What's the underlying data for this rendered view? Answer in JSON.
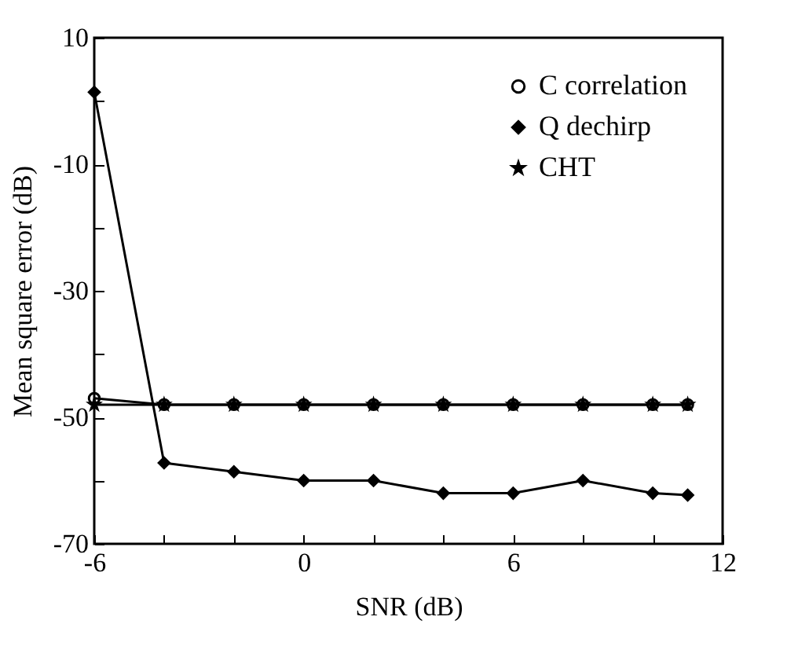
{
  "chart_data": {
    "type": "line",
    "xlabel": "SNR (dB)",
    "ylabel": "Mean square error (dB)",
    "x": [
      -6,
      -4,
      -2,
      0,
      2,
      4,
      6,
      8,
      10,
      11
    ],
    "series": [
      {
        "name": "C correlation",
        "color": "#000000",
        "marker": "circle",
        "values": [
          -47,
          -48,
          -48,
          -48,
          -48,
          -48,
          -48,
          -48,
          -48,
          -48
        ]
      },
      {
        "name": "Q dechirp",
        "color": "#000000",
        "marker": "diamond",
        "values": [
          1.4,
          -57.2,
          -58.6,
          -60,
          -60,
          -62,
          -62,
          -60,
          -62,
          -62.3
        ]
      },
      {
        "name": "CHT",
        "color": "#000000",
        "marker": "star",
        "values": [
          -48,
          -48,
          -48,
          -48,
          -48,
          -48,
          -48,
          -48,
          -48,
          -48
        ]
      }
    ],
    "xlim": [
      -6,
      12
    ],
    "xticks": [
      -6,
      {
        "value": -4,
        "label": null
      },
      {
        "value": -2,
        "label": null
      },
      0,
      {
        "value": 2,
        "label": null
      },
      {
        "value": 4,
        "label": null
      },
      6,
      {
        "value": 8,
        "label": null
      },
      {
        "value": 10,
        "label": null
      },
      12
    ],
    "ylim": [
      -70,
      10
    ],
    "yticks": [
      -70,
      {
        "value": -60,
        "label": null
      },
      -50,
      {
        "value": -40,
        "label": null
      },
      -30,
      {
        "value": -20,
        "label": null
      },
      -10,
      {
        "value": 0,
        "label": null
      },
      10
    ],
    "grid": false,
    "legend": "top right",
    "line_style": "solid"
  }
}
